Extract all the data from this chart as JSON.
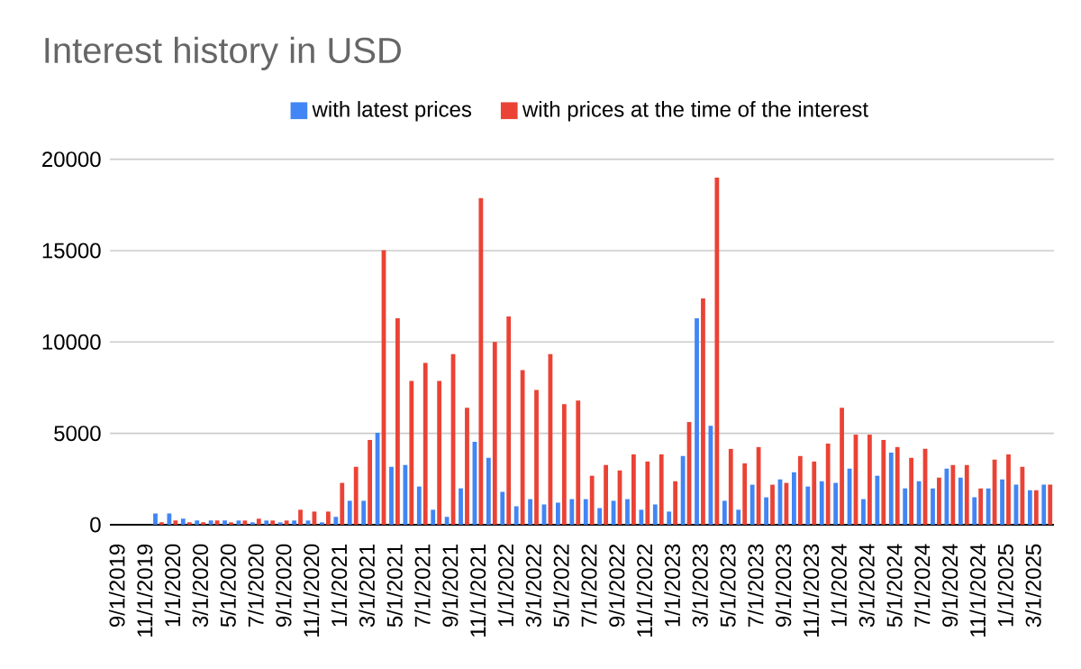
{
  "chart_data": {
    "type": "bar",
    "title": "Interest history in USD",
    "categories": [
      "9/1/2019",
      null,
      "11/1/2019",
      null,
      "1/1/2020",
      null,
      "3/1/2020",
      null,
      "5/1/2020",
      null,
      "7/1/2020",
      null,
      "9/1/2020",
      null,
      "11/1/2020",
      null,
      "1/1/2021",
      null,
      "3/1/2021",
      null,
      "5/1/2021",
      null,
      "7/1/2021",
      null,
      "9/1/2021",
      null,
      "11/1/2021",
      null,
      "1/1/2022",
      null,
      "3/1/2022",
      null,
      "5/1/2022",
      null,
      "7/1/2022",
      null,
      "9/1/2022",
      null,
      "11/1/2022",
      null,
      "1/1/2023",
      null,
      "3/1/2023",
      null,
      "5/1/2023",
      null,
      "7/1/2023",
      null,
      "9/1/2023",
      null,
      "11/1/2023",
      null,
      "1/1/2024",
      null,
      "3/1/2024",
      null,
      "5/1/2024",
      null,
      "7/1/2024",
      null,
      "9/1/2024",
      null,
      "11/1/2024",
      null,
      "1/1/2025",
      null,
      "3/1/2025",
      null
    ],
    "series": [
      {
        "name": "with latest prices",
        "color": "#4285f4",
        "values": [
          0,
          0,
          0,
          620,
          620,
          330,
          230,
          230,
          230,
          230,
          130,
          230,
          130,
          230,
          230,
          130,
          430,
          1310,
          1310,
          5030,
          3170,
          3270,
          2090,
          820,
          430,
          1990,
          4540,
          3660,
          1800,
          1010,
          1400,
          1110,
          1210,
          1400,
          1400,
          910,
          1310,
          1400,
          820,
          1110,
          720,
          3760,
          11300,
          5420,
          1310,
          820,
          2190,
          1500,
          2480,
          2870,
          2090,
          2380,
          2290,
          3070,
          1400,
          2680,
          3950,
          1990,
          2380,
          1990,
          3070,
          2580,
          1500,
          1990,
          2480,
          2190,
          1890,
          2190
        ]
      },
      {
        "name": "with prices at the time of the interest",
        "color": "#ea4335",
        "values": [
          0,
          0,
          0,
          130,
          230,
          130,
          130,
          230,
          130,
          230,
          330,
          230,
          230,
          820,
          720,
          720,
          2290,
          3170,
          4640,
          15030,
          11300,
          7870,
          8850,
          7870,
          9340,
          6400,
          17870,
          10000,
          11400,
          8460,
          7380,
          9340,
          6600,
          6790,
          2680,
          3270,
          2970,
          3850,
          3460,
          3850,
          2380,
          5620,
          12380,
          19000,
          4150,
          3360,
          4250,
          2190,
          2290,
          3760,
          3460,
          4440,
          6400,
          4930,
          4930,
          4640,
          4250,
          3660,
          4150,
          2580,
          3270,
          3270,
          1990,
          3560,
          3850,
          3170,
          1890,
          2190
        ]
      }
    ],
    "ylim": [
      0,
      20000
    ],
    "yticks": [
      0,
      5000,
      10000,
      15000,
      20000
    ],
    "grid": "y",
    "legend": "top"
  }
}
